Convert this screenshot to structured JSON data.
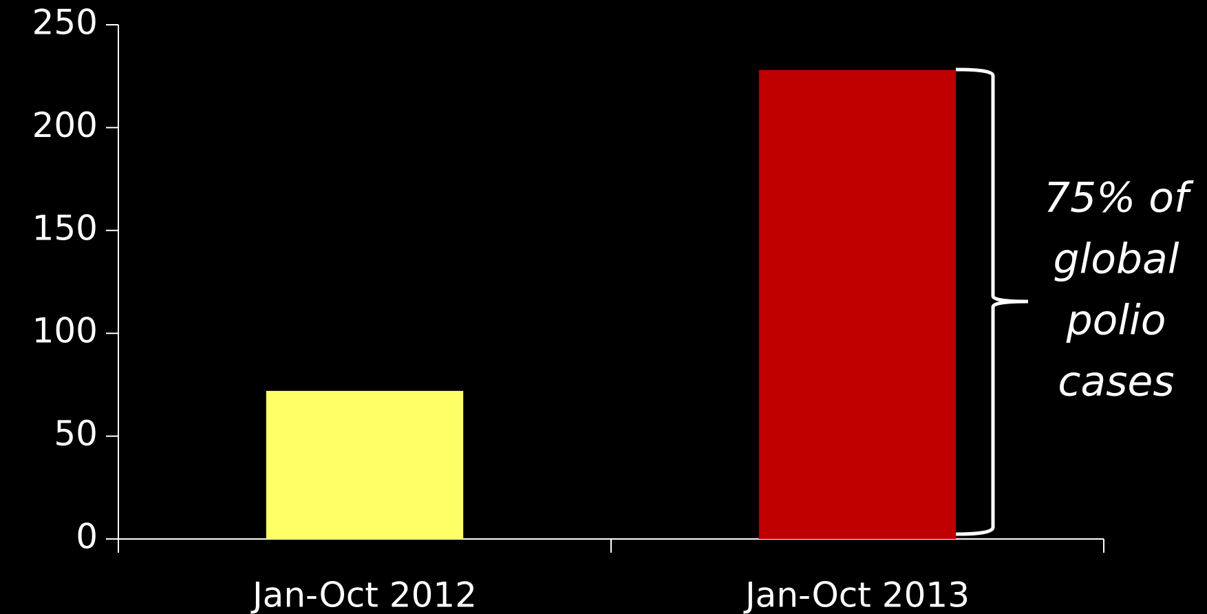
{
  "chart_data": {
    "type": "bar",
    "categories": [
      "Jan-Oct 2012",
      "Jan-Oct 2013"
    ],
    "values": [
      72,
      228
    ],
    "colors": [
      "#ffff66",
      "#c00000"
    ],
    "ylim": [
      0,
      250
    ],
    "yticks": [
      0,
      50,
      100,
      150,
      200,
      250
    ],
    "grid": false,
    "annotation": [
      "75% of",
      "global",
      "polio",
      "cases"
    ]
  }
}
